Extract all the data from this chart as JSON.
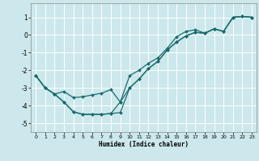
{
  "xlabel": "Humidex (Indice chaleur)",
  "background_color": "#cce8ec",
  "grid_color": "#ffffff",
  "line_color": "#1a6b6b",
  "xmin": -0.5,
  "xmax": 23.5,
  "ymin": -5.5,
  "ymax": 1.8,
  "yticks": [
    -5,
    -4,
    -3,
    -2,
    -1,
    0,
    1
  ],
  "xticks": [
    0,
    1,
    2,
    3,
    4,
    5,
    6,
    7,
    8,
    9,
    10,
    11,
    12,
    13,
    14,
    15,
    16,
    17,
    18,
    19,
    20,
    21,
    22,
    23
  ],
  "line1_x": [
    0,
    1,
    2,
    3,
    4,
    5,
    6,
    7,
    8,
    9,
    10,
    11,
    12,
    13,
    14,
    15,
    16,
    17,
    18,
    19,
    20,
    21,
    22,
    23
  ],
  "line1_y": [
    -2.3,
    -3.0,
    -3.35,
    -3.2,
    -3.55,
    -3.5,
    -3.4,
    -3.3,
    -3.1,
    -3.8,
    -3.0,
    -2.5,
    -1.9,
    -1.5,
    -0.85,
    -0.4,
    -0.05,
    0.15,
    0.1,
    0.35,
    0.2,
    1.0,
    1.05,
    1.0
  ],
  "line2_x": [
    0,
    1,
    2,
    3,
    4,
    5,
    6,
    7,
    8,
    9,
    10,
    11,
    12,
    13,
    14,
    15,
    16,
    17,
    18,
    19,
    20,
    21,
    22,
    23
  ],
  "line2_y": [
    -2.3,
    -3.0,
    -3.35,
    -3.8,
    -4.35,
    -4.5,
    -4.5,
    -4.5,
    -4.45,
    -4.4,
    -3.0,
    -2.5,
    -1.9,
    -1.5,
    -0.85,
    -0.4,
    -0.05,
    0.15,
    0.1,
    0.35,
    0.2,
    1.0,
    1.05,
    1.0
  ],
  "line3_x": [
    0,
    1,
    2,
    3,
    4,
    5,
    6,
    7,
    8,
    9,
    10,
    11,
    12,
    13,
    14,
    15,
    16,
    17,
    18,
    19,
    20,
    21,
    22,
    23
  ],
  "line3_y": [
    -2.3,
    -3.0,
    -3.35,
    -3.8,
    -4.35,
    -4.5,
    -4.5,
    -4.5,
    -4.45,
    -3.8,
    -2.3,
    -2.0,
    -1.6,
    -1.3,
    -0.75,
    -0.1,
    0.2,
    0.3,
    0.1,
    0.35,
    0.2,
    1.0,
    1.05,
    1.0
  ]
}
